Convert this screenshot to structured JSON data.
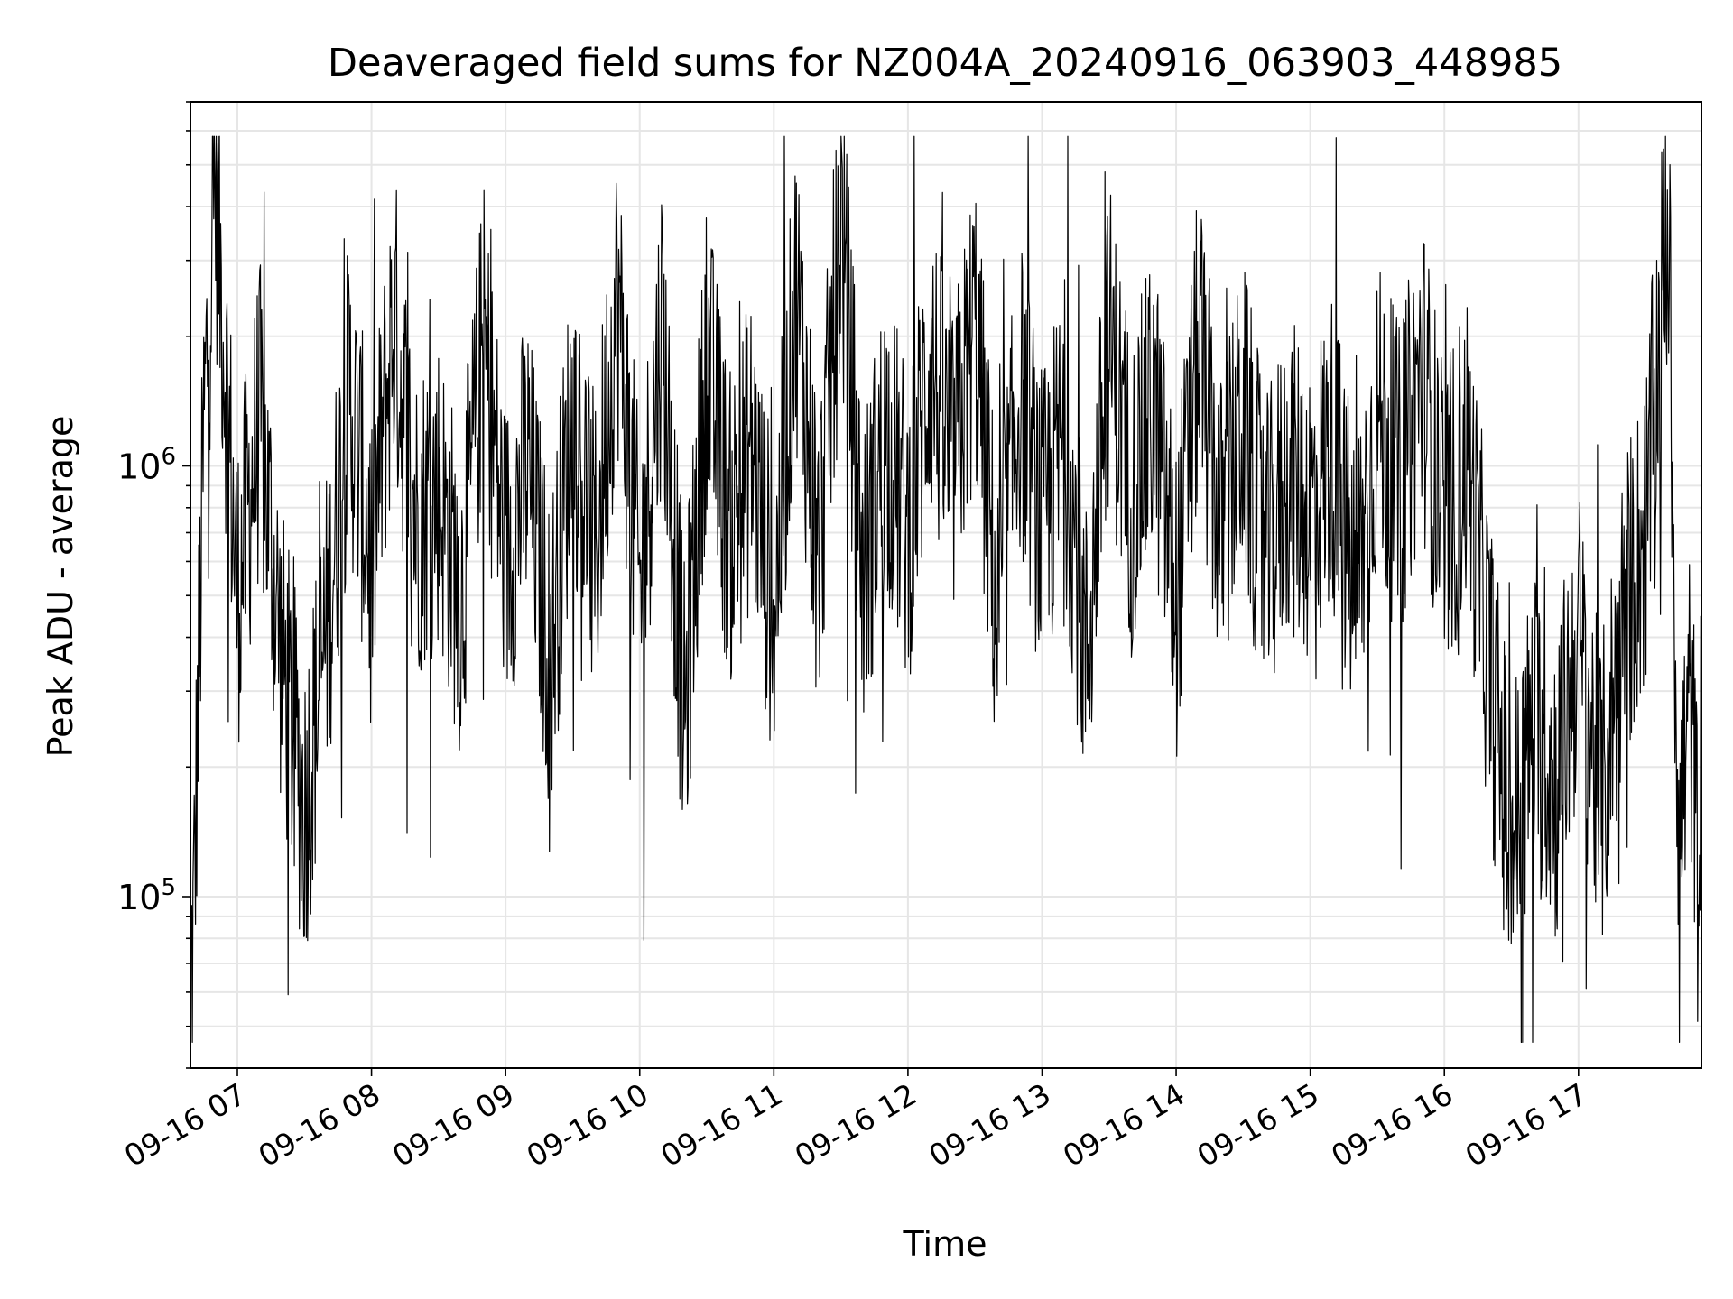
{
  "chart_data": {
    "type": "line",
    "title": "Deaveraged field sums for NZ004A_20240916_063903_448985",
    "xlabel": "Time",
    "ylabel": "Peak ADU - average",
    "yscale": "log",
    "grid": true,
    "line_color": "#000000",
    "x_range": [
      "2024-09-16 06:39",
      "2024-09-16 17:55"
    ],
    "ylim": [
      40000,
      7000000
    ],
    "x_ticks": [
      "09-16 07",
      "09-16 08",
      "09-16 09",
      "09-16 10",
      "09-16 11",
      "09-16 12",
      "09-16 13",
      "09-16 14",
      "09-16 15",
      "09-16 16",
      "09-16 17"
    ],
    "x_tick_hours": [
      7,
      8,
      9,
      10,
      11,
      12,
      13,
      14,
      15,
      16,
      17
    ],
    "y_ticks": [
      {
        "base": "10",
        "exp": "5",
        "value": 100000
      },
      {
        "base": "10",
        "exp": "6",
        "value": 1000000
      }
    ],
    "series": [
      {
        "x": [
          "2024-09-16 06:40",
          "2024-09-16 06:45",
          "2024-09-16 06:50",
          "2024-09-16 07:00",
          "2024-09-16 07:10",
          "2024-09-16 07:20",
          "2024-09-16 07:30",
          "2024-09-16 07:40",
          "2024-09-16 07:50",
          "2024-09-16 08:00",
          "2024-09-16 08:10",
          "2024-09-16 08:20",
          "2024-09-16 08:30",
          "2024-09-16 08:40",
          "2024-09-16 08:50",
          "2024-09-16 09:00",
          "2024-09-16 09:10",
          "2024-09-16 09:20",
          "2024-09-16 09:30",
          "2024-09-16 09:40",
          "2024-09-16 09:50",
          "2024-09-16 10:00",
          "2024-09-16 10:10",
          "2024-09-16 10:20",
          "2024-09-16 10:30",
          "2024-09-16 10:40",
          "2024-09-16 10:50",
          "2024-09-16 11:00",
          "2024-09-16 11:10",
          "2024-09-16 11:20",
          "2024-09-16 11:30",
          "2024-09-16 11:40",
          "2024-09-16 11:50",
          "2024-09-16 12:00",
          "2024-09-16 12:10",
          "2024-09-16 12:20",
          "2024-09-16 12:30",
          "2024-09-16 12:40",
          "2024-09-16 12:50",
          "2024-09-16 13:00",
          "2024-09-16 13:10",
          "2024-09-16 13:20",
          "2024-09-16 13:30",
          "2024-09-16 13:40",
          "2024-09-16 13:50",
          "2024-09-16 14:00",
          "2024-09-16 14:10",
          "2024-09-16 14:20",
          "2024-09-16 14:30",
          "2024-09-16 14:40",
          "2024-09-16 14:50",
          "2024-09-16 15:00",
          "2024-09-16 15:10",
          "2024-09-16 15:20",
          "2024-09-16 15:30",
          "2024-09-16 15:40",
          "2024-09-16 15:50",
          "2024-09-16 16:00",
          "2024-09-16 16:10",
          "2024-09-16 16:20",
          "2024-09-16 16:30",
          "2024-09-16 16:40",
          "2024-09-16 16:50",
          "2024-09-16 17:00",
          "2024-09-16 17:10",
          "2024-09-16 17:20",
          "2024-09-16 17:30",
          "2024-09-16 17:40",
          "2024-09-16 17:45",
          "2024-09-16 17:50",
          "2024-09-16 17:55"
        ],
        "y": [
          70000,
          1200000,
          4800000,
          500000,
          1300000,
          350000,
          160000,
          420000,
          1500000,
          600000,
          2200000,
          750000,
          900000,
          480000,
          2000000,
          600000,
          1000000,
          350000,
          1400000,
          600000,
          2500000,
          500000,
          2200000,
          250000,
          1800000,
          700000,
          1100000,
          450000,
          2600000,
          600000,
          3800000,
          550000,
          1200000,
          700000,
          1800000,
          950000,
          2200000,
          420000,
          1500000,
          700000,
          1200000,
          350000,
          2000000,
          850000,
          1400000,
          480000,
          1900000,
          700000,
          1300000,
          600000,
          950000,
          800000,
          1100000,
          500000,
          1300000,
          900000,
          1700000,
          700000,
          1100000,
          350000,
          130000,
          250000,
          180000,
          400000,
          160000,
          450000,
          700000,
          3900000,
          130000,
          300000,
          75000
        ]
      }
    ]
  }
}
